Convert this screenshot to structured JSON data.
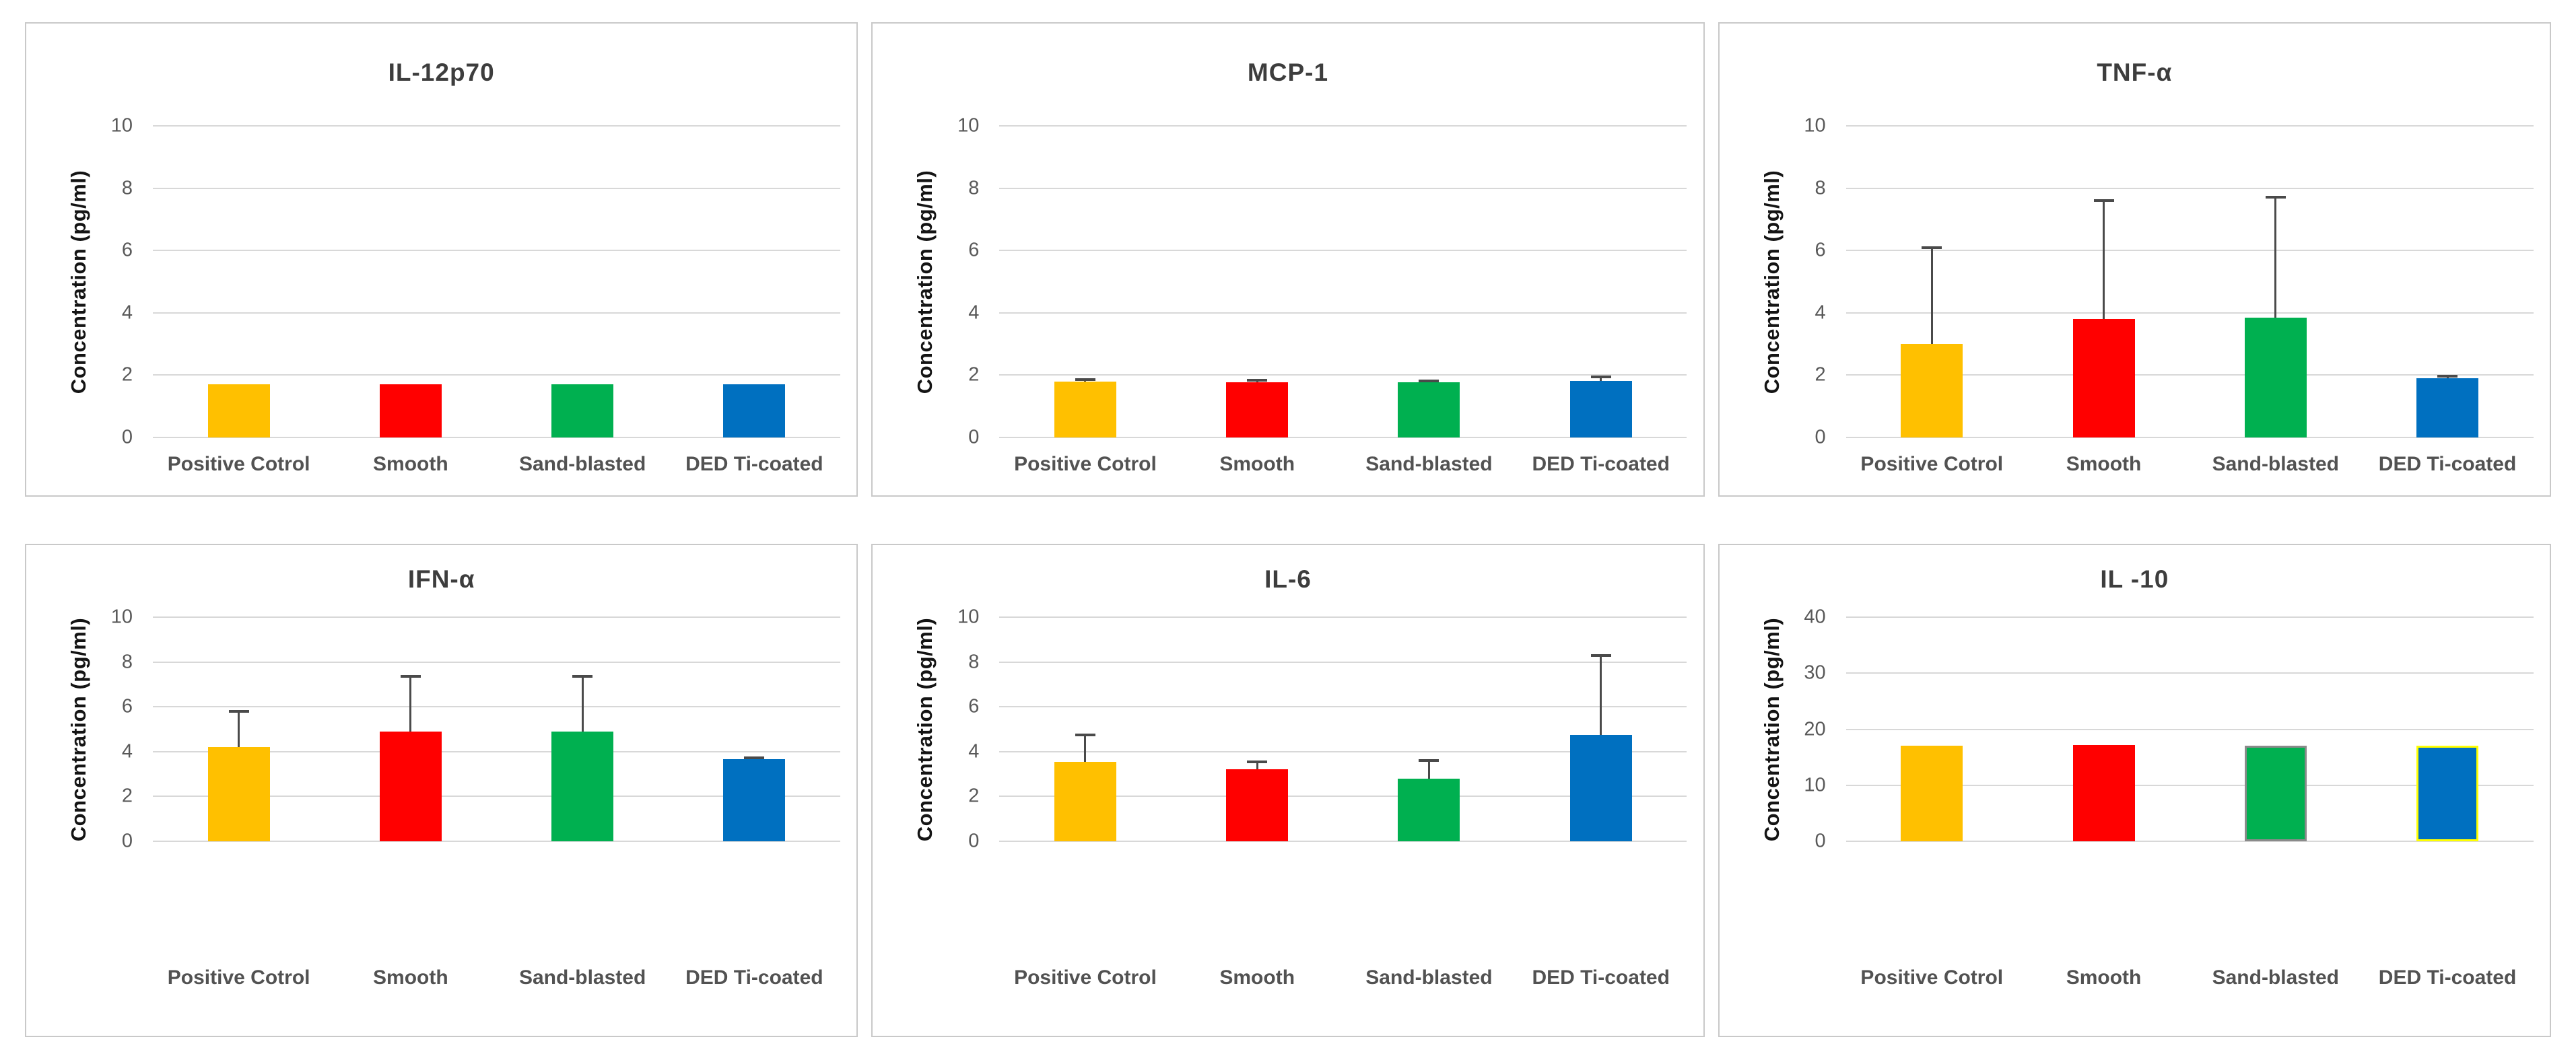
{
  "page": {
    "background": "#ffffff",
    "panel_border_color": "#c9c9c9",
    "gridline_color": "#d8d8d8",
    "error_bar_color": "#4a4a4a"
  },
  "style": {
    "bar_colors": [
      "#FFC000",
      "#FF0000",
      "#00B050",
      "#0070C0"
    ]
  },
  "chart_data": [
    {
      "type": "bar",
      "title": "IL-12p70",
      "ylabel": "Concentration (pg/ml)",
      "xlabel": "",
      "categories": [
        "Positive Cotrol",
        "Smooth",
        "Sand-blasted",
        "DED Ti-coated"
      ],
      "values": [
        1.7,
        1.7,
        1.7,
        1.7
      ],
      "errors_plus": [
        0,
        0,
        0,
        0
      ],
      "bar_colors": [
        "#FFC000",
        "#FF0000",
        "#00B050",
        "#0070C0"
      ],
      "ylim": [
        0,
        10
      ],
      "yticks": [
        0,
        2,
        4,
        6,
        8,
        10
      ],
      "grid": true,
      "legend": false
    },
    {
      "type": "bar",
      "title": "MCP-1",
      "ylabel": "Concentration (pg/ml)",
      "xlabel": "",
      "categories": [
        "Positive Cotrol",
        "Smooth",
        "Sand-blasted",
        "DED Ti-coated"
      ],
      "values": [
        1.8,
        1.78,
        1.78,
        1.82
      ],
      "errors_plus": [
        0.05,
        0.06,
        0.04,
        0.12
      ],
      "bar_colors": [
        "#FFC000",
        "#FF0000",
        "#00B050",
        "#0070C0"
      ],
      "ylim": [
        0,
        10
      ],
      "yticks": [
        0,
        2,
        4,
        6,
        8,
        10
      ],
      "grid": true,
      "legend": false
    },
    {
      "type": "bar",
      "title": "TNF-α",
      "ylabel": "Concentration (pg/ml)",
      "xlabel": "",
      "categories": [
        "Positive Cotrol",
        "Smooth",
        "Sand-blasted",
        "DED Ti-coated"
      ],
      "values": [
        3.0,
        3.8,
        3.85,
        1.9
      ],
      "errors_plus": [
        3.1,
        3.8,
        3.85,
        0.06
      ],
      "bar_colors": [
        "#FFC000",
        "#FF0000",
        "#00B050",
        "#0070C0"
      ],
      "ylim": [
        0,
        10
      ],
      "yticks": [
        0,
        2,
        4,
        6,
        8,
        10
      ],
      "grid": true,
      "legend": false
    },
    {
      "type": "bar",
      "title": "IFN-α",
      "ylabel": "Concentration (pg/ml)",
      "xlabel": "",
      "categories": [
        "Positive Cotrol",
        "Smooth",
        "Sand-blasted",
        "DED Ti-coated"
      ],
      "values": [
        4.2,
        4.9,
        4.9,
        3.65
      ],
      "errors_plus": [
        1.6,
        2.45,
        2.45,
        0.06
      ],
      "bar_colors": [
        "#FFC000",
        "#FF0000",
        "#00B050",
        "#0070C0"
      ],
      "ylim": [
        0,
        10
      ],
      "yticks": [
        0,
        2,
        4,
        6,
        8,
        10
      ],
      "grid": true,
      "legend": false
    },
    {
      "type": "bar",
      "title": "IL-6",
      "ylabel": "Concentration (pg/ml)",
      "xlabel": "",
      "categories": [
        "Positive Cotrol",
        "Smooth",
        "Sand-blasted",
        "DED Ti-coated"
      ],
      "values": [
        3.55,
        3.2,
        2.8,
        4.75
      ],
      "errors_plus": [
        1.2,
        0.35,
        0.8,
        3.55
      ],
      "bar_colors": [
        "#FFC000",
        "#FF0000",
        "#00B050",
        "#0070C0"
      ],
      "ylim": [
        0,
        10
      ],
      "yticks": [
        0,
        2,
        4,
        6,
        8,
        10
      ],
      "grid": true,
      "legend": false
    },
    {
      "type": "bar",
      "title": "IL -10",
      "ylabel": "Concentration (pg/ml)",
      "xlabel": "",
      "categories": [
        "Positive Cotrol",
        "Smooth",
        "Sand-blasted",
        "DED Ti-coated"
      ],
      "values": [
        17.1,
        17.2,
        17.1,
        17.1
      ],
      "errors_plus": [
        0,
        0,
        0,
        0
      ],
      "bar_colors": [
        "#FFC000",
        "#FF0000",
        "#00B050",
        "#0070C0"
      ],
      "bar_outline_colors": [
        null,
        null,
        "#8a8a8a",
        "#ffff00"
      ],
      "ylim": [
        0,
        40
      ],
      "yticks": [
        0,
        10,
        20,
        30,
        40
      ],
      "grid": true,
      "legend": false
    }
  ]
}
